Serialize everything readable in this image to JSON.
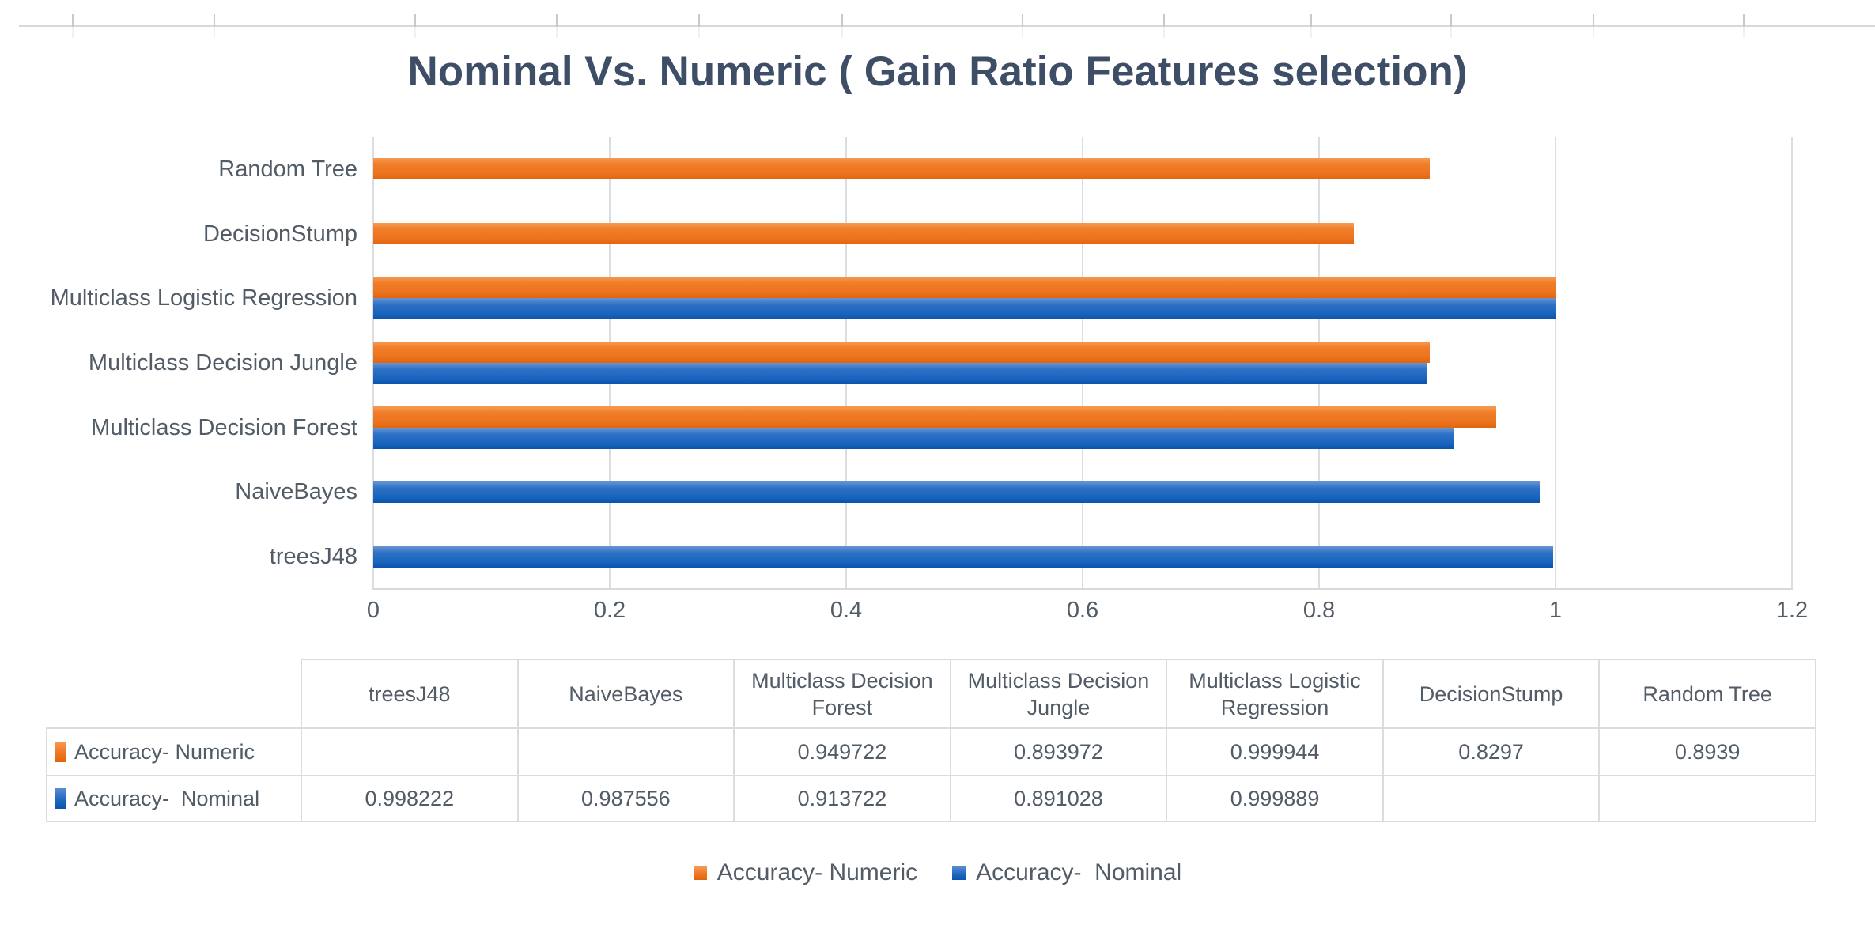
{
  "chart_data": {
    "type": "bar",
    "orientation": "horizontal",
    "title": "Nominal Vs. Numeric ( Gain Ratio Features selection)",
    "categories": [
      "treesJ48",
      "NaiveBayes",
      "Multiclass Decision Forest",
      "Multiclass Decision Jungle",
      "Multiclass Logistic Regression",
      "DecisionStump",
      "Random Tree"
    ],
    "series": [
      {
        "name": "Accuracy- Numeric",
        "color": "#ED7D31",
        "values": [
          null,
          null,
          0.949722,
          0.893972,
          0.999944,
          0.8297,
          0.8939
        ]
      },
      {
        "name": "Accuracy-  Nominal",
        "color": "#1F68C1",
        "values": [
          0.998222,
          0.987556,
          0.913722,
          0.891028,
          0.999889,
          null,
          null
        ]
      }
    ],
    "xlim": [
      0,
      1.2
    ],
    "x_tick_labels": [
      "0",
      "0.2",
      "0.4",
      "0.6",
      "0.8",
      "1",
      "1.2"
    ],
    "grid": "vertical",
    "legend_position": "bottom",
    "data_table_shown": true,
    "category_axis_side": "left"
  },
  "colors": {
    "numeric_orange": "#ED7D31",
    "nominal_blue": "#1F68C1",
    "title_text": "#3E4E66",
    "axis_text": "#525C66",
    "gridline": "#D9D9D9",
    "table_border": "#DCDCDC",
    "background": "#FFFFFF"
  }
}
